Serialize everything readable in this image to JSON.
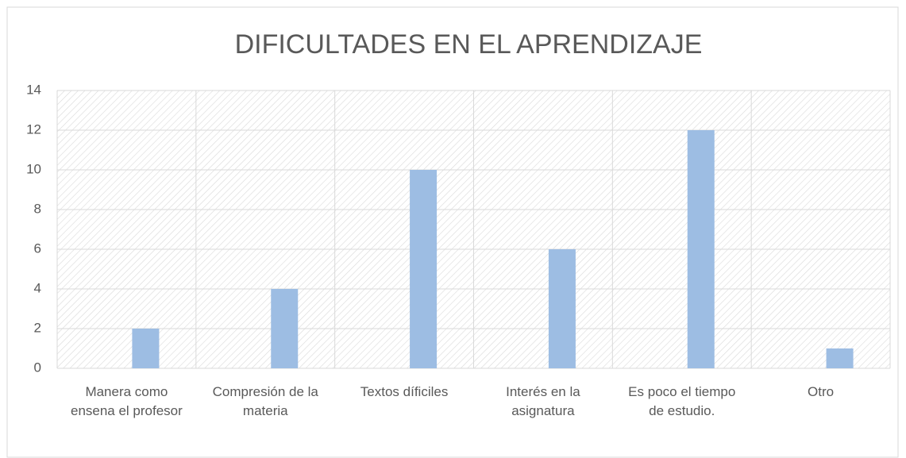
{
  "chart_data": {
    "type": "bar",
    "title": "DIFICULTADES EN EL APRENDIZAJE",
    "categories": [
      "Manera como ensena el profesor",
      "Compresión de la materia",
      "Textos díficiles",
      "Interés en la asignatura",
      "Es poco el tiempo de estudio.",
      "Otro"
    ],
    "values": [
      2,
      4,
      10,
      6,
      12,
      1
    ],
    "color": "#9dbde3",
    "ylim": [
      0,
      14
    ],
    "yticks": [
      0,
      2,
      4,
      6,
      8,
      10,
      12,
      14
    ],
    "grid": true
  }
}
